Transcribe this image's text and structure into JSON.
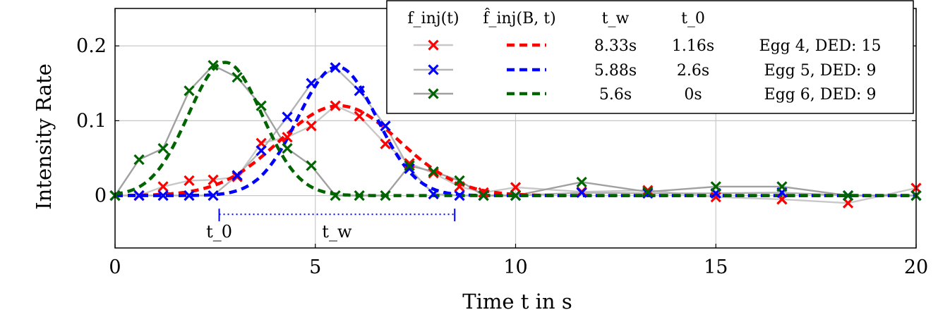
{
  "chart_data": {
    "type": "line",
    "xlabel": "Time t in s",
    "ylabel": "Intensity Rate",
    "xlim": [
      0,
      20
    ],
    "ylim": [
      -0.07,
      0.25
    ],
    "xticks": [
      0,
      5,
      10,
      15,
      20
    ],
    "xtick_labels": [
      "0",
      "5",
      "10",
      "15",
      "20"
    ],
    "yticks": [
      0,
      0.1,
      0.2
    ],
    "ytick_labels": [
      "0",
      "0.1",
      "0.2"
    ],
    "grid": true,
    "legend_position": "top-right",
    "legend_headers": [
      "f_inj(t)",
      "f̂_inj(B, t)",
      "t_w",
      "t_0",
      ""
    ],
    "series": [
      {
        "name": "Egg 4, DED: 15",
        "color": "#ff0000",
        "t_w": "8.33s",
        "t_0": "1.16s",
        "measured": {
          "x": [
            0,
            0.6,
            1.2,
            1.85,
            2.45,
            3.05,
            3.65,
            4.3,
            4.9,
            5.5,
            6.1,
            6.75,
            7.35,
            7.95,
            8.6,
            9.2,
            10.0,
            11.65,
            13.3,
            15.0,
            16.65,
            18.3,
            20.0
          ],
          "y": [
            0,
            0,
            0.012,
            0.02,
            0.021,
            0.025,
            0.07,
            0.078,
            0.093,
            0.12,
            0.106,
            0.069,
            0.043,
            0.03,
            0.012,
            0.004,
            0.011,
            0.005,
            0.007,
            -0.002,
            -0.005,
            -0.01,
            0.01
          ]
        },
        "fit": {
          "center": 5.6,
          "amplitude": 0.12,
          "sigma": 1.5
        }
      },
      {
        "name": "Egg 5, DED: 9",
        "color": "#0000ff",
        "t_w": "5.88s",
        "t_0": "2.6s",
        "measured": {
          "x": [
            0,
            0.6,
            1.2,
            1.85,
            2.45,
            3.05,
            3.65,
            4.3,
            4.9,
            5.5,
            6.1,
            6.75,
            7.35,
            7.95,
            8.6,
            9.2,
            10.0,
            11.65,
            13.3,
            15.0,
            16.65,
            18.3,
            20.0
          ],
          "y": [
            0,
            0,
            0,
            0,
            0,
            0.027,
            0.06,
            0.105,
            0.15,
            0.171,
            0.14,
            0.093,
            0.036,
            0.002,
            0,
            0,
            0,
            0.004,
            0.003,
            0.003,
            0.004,
            0,
            0
          ]
        },
        "fit": {
          "center": 5.55,
          "amplitude": 0.172,
          "sigma": 0.98
        }
      },
      {
        "name": "Egg 6, DED: 9",
        "color": "#006400",
        "t_w": "5.6s",
        "t_0": "0s",
        "measured": {
          "x": [
            0,
            0.6,
            1.2,
            1.85,
            2.45,
            3.05,
            3.65,
            4.3,
            4.9,
            5.5,
            6.1,
            6.75,
            7.35,
            7.95,
            8.6,
            9.2,
            10.0,
            11.65,
            13.3,
            15.0,
            16.65,
            18.3,
            20.0
          ],
          "y": [
            0,
            0.048,
            0.063,
            0.14,
            0.174,
            0.158,
            0.12,
            0.063,
            0.04,
            0,
            0,
            0,
            0.04,
            0.032,
            0.02,
            0,
            0,
            0.018,
            0.005,
            0.012,
            0.012,
            0,
            0
          ]
        },
        "fit": {
          "center": 2.75,
          "amplitude": 0.178,
          "sigma": 0.92
        }
      }
    ],
    "annotations": {
      "t0_label": "t_0",
      "tw_label": "t_w",
      "t0_x": 2.6,
      "tw_end_x": 8.48,
      "y": -0.025,
      "color": "#0000ff"
    }
  }
}
